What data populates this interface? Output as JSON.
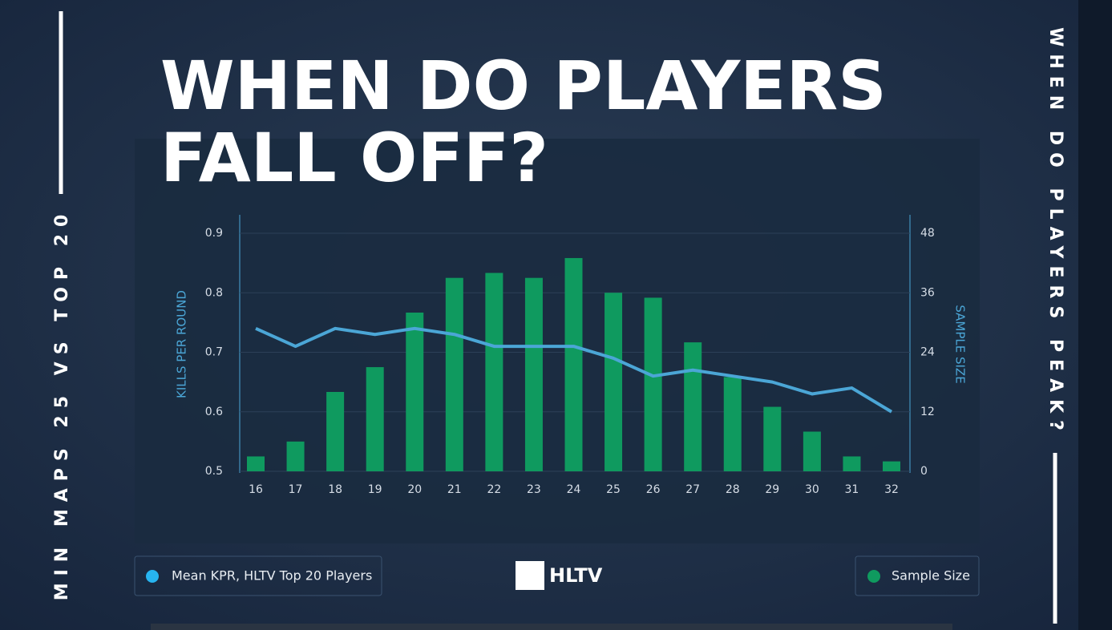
{
  "header": {
    "title_lines": [
      "WHEN DO PLAYERS",
      "FALL OFF?"
    ],
    "side_left": "MIN MAPS 25 VS TOP 20",
    "side_right": "WHEN DO PLAYERS PEAK?",
    "logo": "HLTV"
  },
  "chart_data": {
    "type": "bar",
    "categories": [
      "16",
      "17",
      "18",
      "19",
      "20",
      "21",
      "22",
      "23",
      "24",
      "25",
      "26",
      "27",
      "28",
      "29",
      "30",
      "31",
      "32"
    ],
    "series": [
      {
        "name": "Mean KPR, HLTV Top 20 Players",
        "type": "line",
        "color": "#4ba6d6",
        "values": [
          0.74,
          0.71,
          0.74,
          0.73,
          0.74,
          0.73,
          0.71,
          0.71,
          0.71,
          0.69,
          0.66,
          0.67,
          0.66,
          0.65,
          0.63,
          0.64,
          0.6
        ]
      },
      {
        "name": "Sample Size",
        "type": "bar",
        "axis": "y2",
        "color": "#0f9a5f",
        "values": [
          3,
          6,
          16,
          21,
          32,
          39,
          40,
          39,
          43,
          36,
          35,
          26,
          19,
          13,
          8,
          3,
          2
        ]
      }
    ],
    "y_label": "KILLS PER ROUND",
    "y2_label": "SAMPLE SIZE",
    "ylim": [
      0.5,
      0.9
    ],
    "yticks": [
      0.5,
      0.6,
      0.7,
      0.8,
      0.9
    ],
    "y2lim": [
      0,
      48
    ],
    "y2ticks": [
      0,
      12,
      24,
      36,
      48
    ],
    "grid": true
  }
}
